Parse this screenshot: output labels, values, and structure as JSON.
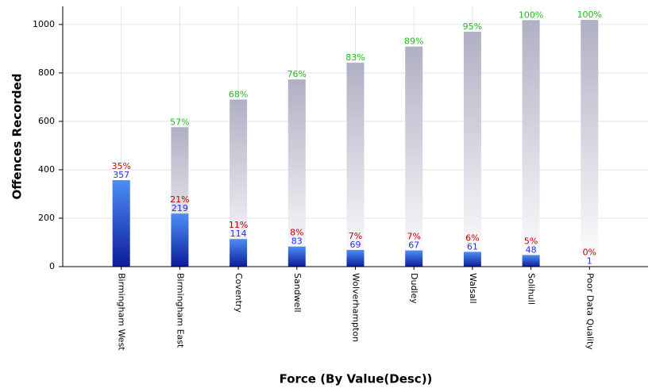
{
  "chart_data": {
    "type": "bar",
    "x_label": "Force (By Value(Desc))",
    "y_label": "Offences Recorded",
    "categories": [
      "Birmingham West",
      "Birmingham East",
      "Coventry",
      "Sandwell",
      "Wolverhampton",
      "Dudley",
      "Walsall",
      "Solihull",
      "Poor Data Quality"
    ],
    "bars": {
      "color": "#1a3ccc",
      "values": [
        357,
        219,
        114,
        83,
        69,
        67,
        61,
        48,
        1
      ]
    },
    "cumulative": {
      "color": "#b4b4c6",
      "values": [
        357,
        576,
        690,
        773,
        842,
        909,
        970,
        1018,
        1019
      ]
    },
    "share": {
      "color": "#c00000",
      "values": [
        35,
        21,
        11,
        8,
        7,
        7,
        6,
        5,
        0
      ],
      "value_labels": [
        "35%",
        "21%",
        "11%",
        "8%",
        "7%",
        "7%",
        "6%",
        "5%",
        "0%"
      ]
    },
    "cumulative_share": {
      "color": "#22bb22",
      "values": [
        null,
        57,
        68,
        76,
        83,
        89,
        95,
        100,
        100
      ],
      "value_labels": [
        null,
        "57%",
        "68%",
        "76%",
        "83%",
        "89%",
        "95%",
        "100%",
        "100%"
      ]
    },
    "ylim": [
      0,
      1075
    ],
    "yticks": [
      0,
      200,
      400,
      600,
      800,
      1000
    ],
    "grid": true
  }
}
